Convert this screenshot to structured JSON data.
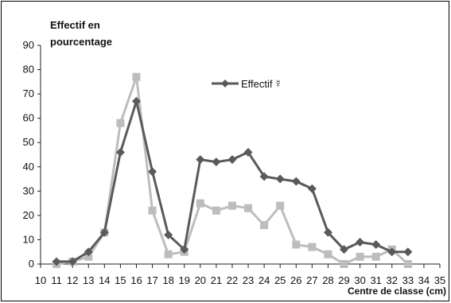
{
  "chart_data": {
    "type": "line",
    "ylabel_lines": [
      "Effectif en",
      "pourcentage"
    ],
    "xlabel": "Centre de classe (cm)",
    "xlim": [
      10,
      35
    ],
    "ylim": [
      0,
      90
    ],
    "x_ticks": [
      10,
      11,
      12,
      13,
      14,
      15,
      16,
      17,
      18,
      19,
      20,
      21,
      22,
      23,
      24,
      25,
      26,
      27,
      28,
      29,
      30,
      31,
      32,
      33,
      34,
      35
    ],
    "y_ticks": [
      0,
      10,
      20,
      30,
      40,
      50,
      60,
      70,
      80,
      90
    ],
    "legend_placement": "top-center",
    "series": [
      {
        "name": "Effectif",
        "legend_symbol": "☿",
        "color": "#5a5a5a",
        "marker": "diamond",
        "x": [
          11,
          12,
          13,
          14,
          15,
          16,
          17,
          18,
          19,
          20,
          21,
          22,
          23,
          24,
          25,
          26,
          27,
          28,
          29,
          30,
          31,
          32,
          33
        ],
        "values": [
          1,
          1,
          5,
          13,
          46,
          67,
          38,
          12,
          6,
          43,
          42,
          43,
          46,
          36,
          35,
          34,
          31,
          13,
          6,
          9,
          8,
          5,
          5
        ]
      },
      {
        "color": "#bdbdbd",
        "marker": "square",
        "x": [
          11,
          12,
          13,
          14,
          15,
          16,
          17,
          18,
          19,
          20,
          21,
          22,
          23,
          24,
          25,
          26,
          27,
          28,
          29,
          30,
          31,
          32,
          33
        ],
        "values": [
          0,
          1,
          3,
          13,
          58,
          77,
          22,
          4,
          5,
          25,
          22,
          24,
          23,
          16,
          24,
          8,
          7,
          4,
          0,
          3,
          3,
          6,
          0
        ]
      }
    ]
  }
}
